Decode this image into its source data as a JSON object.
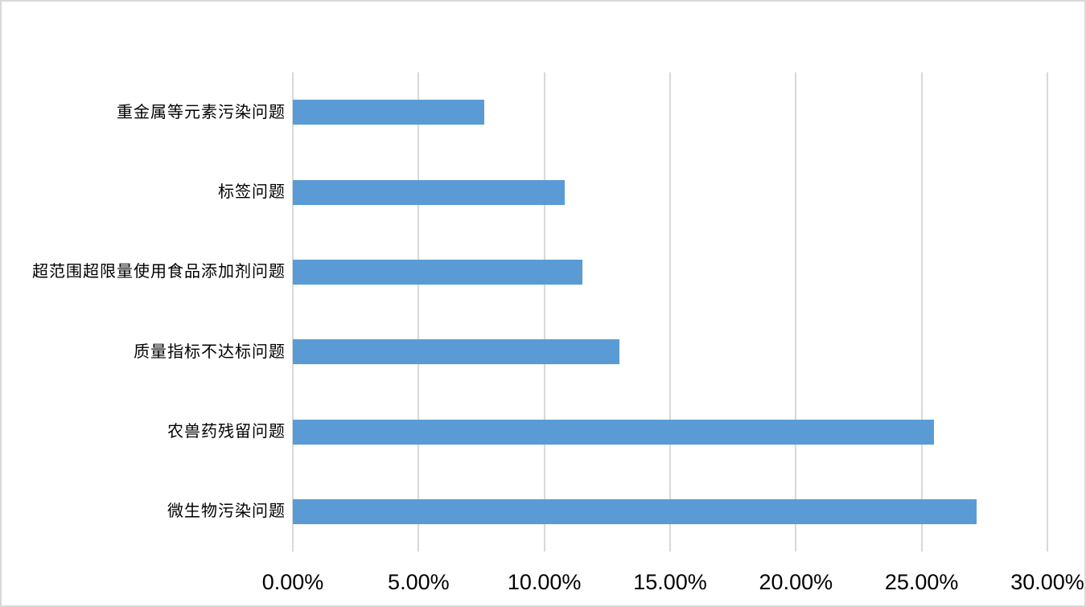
{
  "chart_data": {
    "type": "bar",
    "orientation": "horizontal",
    "title": "",
    "categories": [
      "重金属等元素污染问题",
      "标签问题",
      "超范围超限量使用食品添加剂问题",
      "质量指标不达标问题",
      "农兽药残留问题",
      "微生物污染问题"
    ],
    "values": [
      7.6,
      10.8,
      11.5,
      13.0,
      25.5,
      27.2
    ],
    "value_unit": "%",
    "x_axis": {
      "min": 0,
      "max": 30,
      "tick_values": [
        0,
        5,
        10,
        15,
        20,
        25,
        30
      ],
      "tick_labels": [
        "0.00%",
        "5.00%",
        "10.00%",
        "15.00%",
        "20.00%",
        "25.00%",
        "30.00%"
      ]
    },
    "grid": true,
    "legend": false,
    "layout": "categories listed top to bottom as displayed; bars extend left to right from 0%"
  },
  "colors": {
    "bar": "#5B9BD5",
    "gridline": "#D9D9D9",
    "text": "#000000",
    "background": "#FFFFFF",
    "border": "#D9D9D9"
  }
}
